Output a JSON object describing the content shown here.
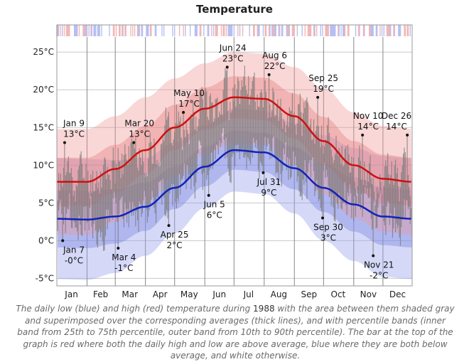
{
  "title": "Temperature",
  "caption": {
    "before_year": "The daily low (blue) and high (red) temperature during ",
    "year": "1988",
    "after_year": " with the area between them shaded gray and superimposed over the corresponding averages (thick lines), and with percentile bands (inner band from 25th to 75th percentile, outer band from 10th to 90th percentile). The bar at the top of the graph is red where both the daily high and low are above average, blue where they are both below average, and white otherwise."
  },
  "chart_data": {
    "type": "area",
    "title": "Temperature",
    "ylim": [
      -6,
      27
    ],
    "xlim_days": [
      1,
      366
    ],
    "grid": true,
    "y_ticks": [
      {
        "value": 25,
        "label": "25°C"
      },
      {
        "value": 20,
        "label": "20°C"
      },
      {
        "value": 15,
        "label": "15°C"
      },
      {
        "value": 10,
        "label": "10°C"
      },
      {
        "value": 5,
        "label": "5°C"
      },
      {
        "value": 0,
        "label": "0°C"
      },
      {
        "value": -5,
        "label": "-5°C"
      }
    ],
    "month_labels": [
      {
        "label": "Jan",
        "day": 16
      },
      {
        "label": "Feb",
        "day": 46
      },
      {
        "label": "Mar",
        "day": 76
      },
      {
        "label": "Apr",
        "day": 107
      },
      {
        "label": "May",
        "day": 137
      },
      {
        "label": "Jun",
        "day": 168
      },
      {
        "label": "Jul",
        "day": 198
      },
      {
        "label": "Aug",
        "day": 229
      },
      {
        "label": "Sep",
        "day": 260
      },
      {
        "label": "Oct",
        "day": 290
      },
      {
        "label": "Nov",
        "day": 321
      },
      {
        "label": "Dec",
        "day": 351
      }
    ],
    "gridline_days": [
      1,
      32,
      61,
      92,
      122,
      153,
      183,
      214,
      245,
      275,
      306,
      336,
      366
    ],
    "average_high": {
      "name": "average high",
      "color": "#cc1111",
      "days": [
        1,
        32,
        61,
        92,
        122,
        153,
        183,
        214,
        245,
        275,
        306,
        336,
        366
      ],
      "values": [
        7.8,
        7.8,
        9.5,
        12.0,
        15.0,
        17.5,
        19.0,
        18.8,
        16.5,
        13.2,
        10.0,
        8.2,
        7.8
      ]
    },
    "average_low": {
      "name": "average low",
      "color": "#1122bb",
      "days": [
        1,
        32,
        61,
        92,
        122,
        153,
        183,
        214,
        245,
        275,
        306,
        336,
        366
      ],
      "values": [
        2.9,
        2.8,
        3.2,
        4.5,
        7.0,
        9.8,
        12.0,
        11.7,
        9.6,
        7.0,
        4.8,
        3.2,
        2.9
      ]
    },
    "high_band_10_90": [
      7.0,
      7.0,
      7.0,
      7.0,
      6.5,
      6.0,
      6.0,
      6.0,
      6.5,
      7.0,
      7.0,
      7.0,
      7.0
    ],
    "high_band_25_75": [
      3.2,
      3.2,
      3.2,
      3.2,
      3.0,
      2.8,
      2.8,
      2.8,
      3.0,
      3.2,
      3.2,
      3.2,
      3.2
    ],
    "low_band_10_90": [
      8.0,
      8.0,
      7.5,
      6.5,
      6.0,
      5.5,
      5.5,
      5.5,
      6.0,
      7.0,
      7.5,
      8.0,
      8.0
    ],
    "low_band_25_75": [
      3.8,
      3.8,
      3.6,
      3.2,
      2.8,
      2.6,
      2.6,
      2.6,
      2.8,
      3.2,
      3.6,
      3.8,
      3.8
    ],
    "daily_range_color": "#7a7a7a",
    "annotations": [
      {
        "date": "Jan 9",
        "value": 13,
        "label": "13°C",
        "day": 9,
        "side": "above"
      },
      {
        "date": "Jan 7",
        "value": 0,
        "label": "-0°C",
        "day": 7,
        "side": "below"
      },
      {
        "date": "Mar 4",
        "value": -1,
        "label": "-1°C",
        "day": 64,
        "side": "below"
      },
      {
        "date": "Mar 20",
        "value": 13,
        "label": "13°C",
        "day": 80,
        "side": "above"
      },
      {
        "date": "Apr 25",
        "value": 2,
        "label": "2°C",
        "day": 116,
        "side": "below"
      },
      {
        "date": "May 10",
        "value": 17,
        "label": "17°C",
        "day": 131,
        "side": "above"
      },
      {
        "date": "Jun 5",
        "value": 6,
        "label": "6°C",
        "day": 157,
        "side": "below"
      },
      {
        "date": "Jun 24",
        "value": 23,
        "label": "23°C",
        "day": 176,
        "side": "above"
      },
      {
        "date": "Jul 31",
        "value": 9,
        "label": "9°C",
        "day": 213,
        "side": "below"
      },
      {
        "date": "Aug 6",
        "value": 22,
        "label": "22°C",
        "day": 219,
        "side": "above"
      },
      {
        "date": "Sep 25",
        "value": 19,
        "label": "19°C",
        "day": 269,
        "side": "above"
      },
      {
        "date": "Sep 30",
        "value": 3,
        "label": "3°C",
        "day": 274,
        "side": "below"
      },
      {
        "date": "Nov 10",
        "value": 14,
        "label": "14°C",
        "day": 315,
        "side": "above"
      },
      {
        "date": "Nov 21",
        "value": -2,
        "label": "-2°C",
        "day": 326,
        "side": "below"
      },
      {
        "date": "Dec 26",
        "value": 14,
        "label": "14°C",
        "day": 361,
        "side": "above"
      }
    ],
    "anomaly_bar_colors": {
      "above": "#f2b6b6",
      "below": "#b6bff2",
      "neutral": "#ffffff"
    }
  }
}
